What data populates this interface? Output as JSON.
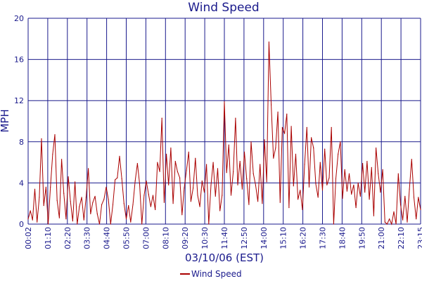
{
  "chart_data": {
    "type": "line",
    "title": "Wind Speed",
    "xlabel": "03/10/06 (EST)",
    "ylabel": "MPH",
    "ylim": [
      0,
      20
    ],
    "yticks": [
      "0",
      "4",
      "8",
      "12",
      "16",
      "20"
    ],
    "xticks": [
      "00:02",
      "01:10",
      "02:20",
      "03:30",
      "04:40",
      "05:50",
      "07:00",
      "08:10",
      "09:20",
      "10:30",
      "11:40",
      "12:50",
      "14:00",
      "15:10",
      "16:20",
      "17:30",
      "18:40",
      "19:50",
      "21:00",
      "22:10",
      "23:15"
    ],
    "grid": true,
    "legend_position": "bottom-center",
    "colors": {
      "series": "#aa0000",
      "grid": "#1a1a8c",
      "text": "#1a1a8c"
    },
    "series": [
      {
        "name": "Wind Speed",
        "values": [
          0.5,
          1.3,
          0.4,
          3.4,
          0.2,
          2.6,
          8.3,
          1.8,
          3.6,
          0.0,
          3.6,
          6.8,
          8.7,
          2.3,
          0.6,
          6.3,
          3.0,
          0.5,
          4.6,
          2.2,
          0.3,
          4.1,
          0.0,
          1.7,
          2.6,
          0.4,
          2.6,
          5.4,
          1.0,
          2.1,
          2.7,
          1.0,
          0.0,
          1.9,
          2.4,
          3.6,
          2.4,
          0.0,
          1.9,
          4.3,
          4.5,
          6.6,
          4.4,
          2.0,
          0.5,
          1.8,
          0.2,
          1.9,
          4.2,
          5.9,
          3.9,
          0.0,
          2.8,
          4.2,
          2.9,
          1.7,
          2.8,
          1.4,
          6.0,
          5.1,
          10.3,
          2.1,
          6.8,
          3.8,
          7.4,
          2.0,
          6.1,
          5.1,
          4.5,
          0.9,
          3.5,
          5.2,
          7.0,
          2.2,
          3.5,
          6.4,
          2.8,
          1.7,
          4.2,
          3.1,
          5.8,
          0.0,
          3.8,
          6.0,
          2.7,
          5.4,
          1.3,
          2.8,
          11.9,
          5.0,
          7.7,
          2.8,
          5.1,
          10.3,
          3.8,
          6.1,
          3.4,
          7.0,
          4.4,
          1.9,
          8.0,
          4.9,
          3.8,
          2.2,
          5.8,
          2.0,
          8.2,
          4.1,
          17.7,
          11.6,
          6.4,
          7.4,
          10.9,
          2.1,
          9.4,
          8.8,
          10.7,
          1.6,
          9.5,
          3.7,
          6.8,
          2.4,
          3.3,
          1.4,
          5.8,
          9.4,
          3.6,
          8.4,
          7.4,
          3.9,
          2.6,
          6.0,
          3.3,
          7.3,
          3.8,
          4.5,
          9.4,
          0.0,
          4.4,
          6.8,
          8.0,
          2.5,
          5.3,
          3.2,
          4.9,
          2.9,
          3.8,
          1.6,
          4.0,
          2.7,
          5.9,
          3.1,
          6.1,
          2.4,
          5.5,
          0.8,
          7.4,
          4.9,
          3.1,
          5.3,
          0.2,
          0.0,
          0.5,
          0.0,
          1.2,
          0.0,
          4.9,
          1.9,
          0.4,
          2.7,
          0.2,
          3.4,
          6.3,
          2.6,
          0.5,
          2.6,
          1.4
        ]
      }
    ]
  }
}
